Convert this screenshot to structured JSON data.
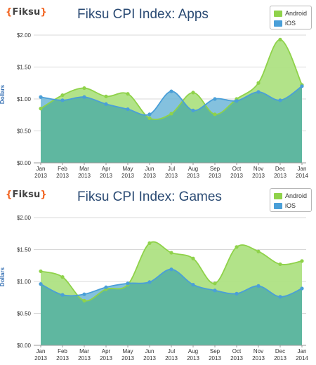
{
  "brand": {
    "logo_text": "{Fiksu}"
  },
  "colors": {
    "android": "#8fd24a",
    "android_fill": "#aee283",
    "ios": "#4a9fd8",
    "ios_fill": "#6fb6d8",
    "overlap_fill": "#5fb7a0",
    "title": "#2a4a73"
  },
  "chart_data": [
    {
      "type": "area",
      "title": "Fiksu CPI Index: Apps",
      "ylabel": "Dollars",
      "ylim": [
        0,
        2
      ],
      "yticks": [
        "$0.00",
        "$0.50",
        "$1.00",
        "$1.50",
        "$2.00"
      ],
      "categories": [
        [
          "Jan",
          "2013"
        ],
        [
          "Feb",
          "2013"
        ],
        [
          "Mar",
          "2013"
        ],
        [
          "Apr",
          "2013"
        ],
        [
          "May",
          "2013"
        ],
        [
          "Jun",
          "2013"
        ],
        [
          "Jul",
          "2013"
        ],
        [
          "Aug",
          "2013"
        ],
        [
          "Sep",
          "2013"
        ],
        [
          "Oct",
          "2013"
        ],
        [
          "Nov",
          "2013"
        ],
        [
          "Dec",
          "2013"
        ],
        [
          "Jan",
          "2014"
        ]
      ],
      "legend": "top-right",
      "series": [
        {
          "name": "Android",
          "values": [
            0.85,
            1.06,
            1.17,
            1.04,
            1.08,
            0.7,
            0.77,
            1.1,
            0.76,
            1.0,
            1.25,
            1.93,
            1.22
          ]
        },
        {
          "name": "iOS",
          "values": [
            1.03,
            0.98,
            1.03,
            0.92,
            0.84,
            0.76,
            1.12,
            0.82,
            1.0,
            0.97,
            1.11,
            0.98,
            1.2
          ]
        }
      ]
    },
    {
      "type": "area",
      "title": "Fiksu CPI Index: Games",
      "ylabel": "Dollars",
      "ylim": [
        0,
        2
      ],
      "yticks": [
        "$0.00",
        "$0.50",
        "$1.00",
        "$1.50",
        "$2.00"
      ],
      "categories": [
        [
          "Jan",
          "2013"
        ],
        [
          "Feb",
          "2013"
        ],
        [
          "Mar",
          "2013"
        ],
        [
          "Apr",
          "2013"
        ],
        [
          "May",
          "2013"
        ],
        [
          "Jun",
          "2013"
        ],
        [
          "Jul",
          "2013"
        ],
        [
          "Aug",
          "2013"
        ],
        [
          "Sep",
          "2013"
        ],
        [
          "Oct",
          "2013"
        ],
        [
          "Nov",
          "2013"
        ],
        [
          "Dec",
          "2013"
        ],
        [
          "Jan",
          "2014"
        ]
      ],
      "legend": "top-right",
      "series": [
        {
          "name": "Android",
          "values": [
            1.16,
            1.07,
            0.7,
            0.88,
            0.95,
            1.6,
            1.45,
            1.36,
            0.97,
            1.54,
            1.47,
            1.27,
            1.32
          ]
        },
        {
          "name": "iOS",
          "values": [
            0.96,
            0.79,
            0.8,
            0.91,
            0.97,
            0.99,
            1.19,
            0.95,
            0.86,
            0.81,
            0.93,
            0.76,
            0.89
          ]
        }
      ]
    }
  ]
}
